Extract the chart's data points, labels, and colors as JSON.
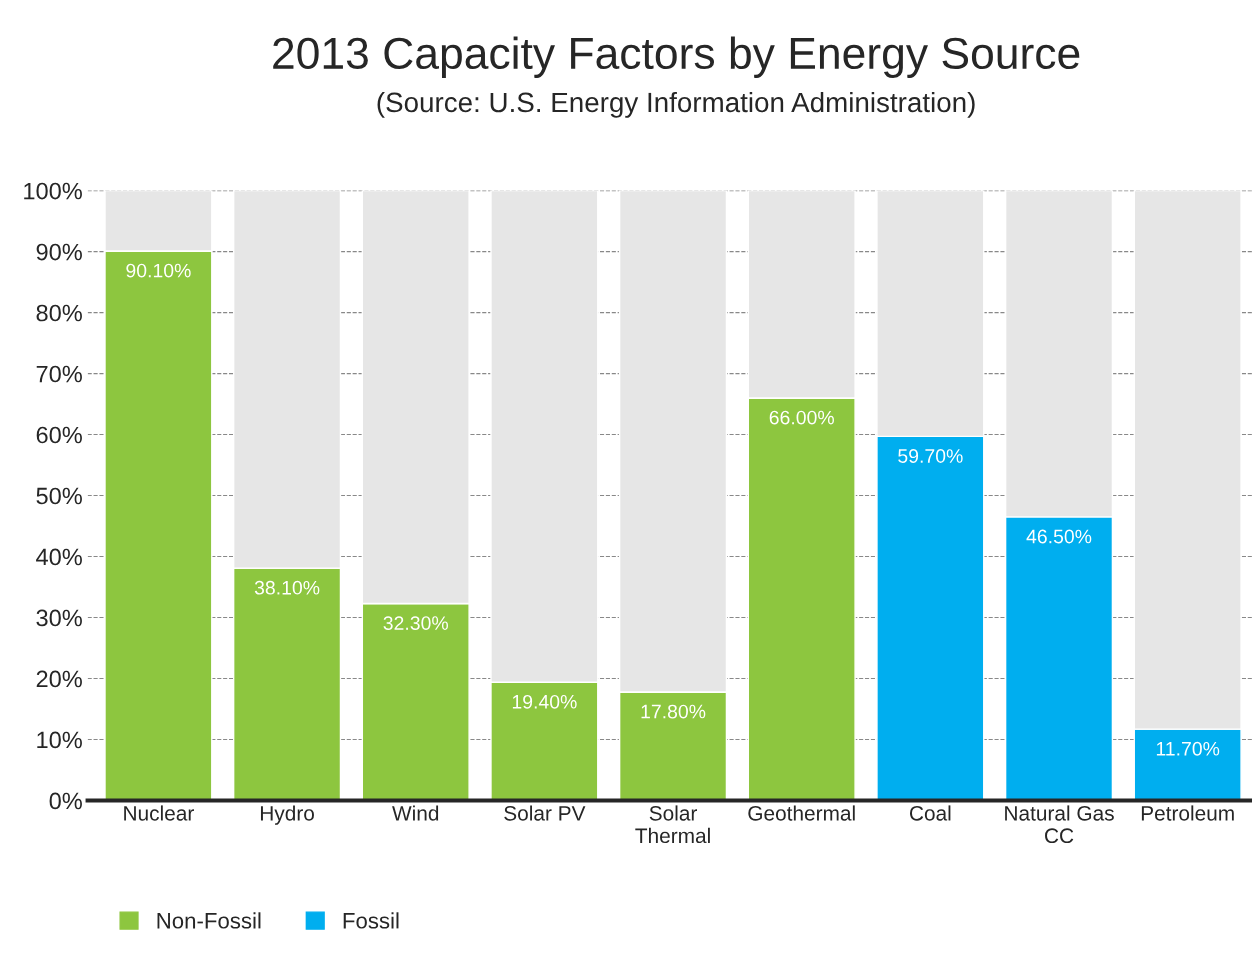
{
  "chart_data": {
    "type": "bar",
    "title": "2013 Capacity Factors by Energy Source",
    "subtitle": "(Source: U.S. Energy Information Administration)",
    "categories": [
      "Nuclear",
      "Hydro",
      "Wind",
      "Solar PV",
      "Solar\nThermal",
      "Geothermal",
      "Coal",
      "Natural Gas\nCC",
      "Petroleum"
    ],
    "stacked": true,
    "series": [
      {
        "name": "Non-Fossil",
        "color": "#8dc63f",
        "values": [
          90.1,
          38.1,
          32.3,
          19.4,
          17.8,
          66.0,
          null,
          null,
          null
        ],
        "value_labels": [
          "90.10%",
          "38.10%",
          "32.30%",
          "19.40%",
          "17.80%",
          "66.00%",
          null,
          null,
          null
        ]
      },
      {
        "name": "Fossil",
        "color": "#00aeef",
        "values": [
          null,
          null,
          null,
          null,
          null,
          null,
          59.7,
          46.5,
          11.7
        ],
        "value_labels": [
          null,
          null,
          null,
          null,
          null,
          null,
          "59.70%",
          "46.50%",
          "11.70%"
        ]
      },
      {
        "color": "#e6e6e6",
        "values": [
          9.9,
          61.9,
          67.7,
          80.6,
          82.2,
          34.0,
          40.3,
          53.5,
          88.3
        ]
      }
    ],
    "ylim": [
      0,
      100
    ],
    "yticks": [
      {
        "value": 0,
        "label": "0%"
      },
      {
        "value": 10,
        "label": "10%"
      },
      {
        "value": 20,
        "label": "20%"
      },
      {
        "value": 30,
        "label": "30%"
      },
      {
        "value": 40,
        "label": "40%"
      },
      {
        "value": 50,
        "label": "50%"
      },
      {
        "value": 60,
        "label": "60%"
      },
      {
        "value": 70,
        "label": "70%"
      },
      {
        "value": 80,
        "label": "80%"
      },
      {
        "value": 90,
        "label": "90%"
      },
      {
        "value": 100,
        "label": "100%"
      }
    ],
    "grid": "y",
    "legend": "bottom left"
  }
}
